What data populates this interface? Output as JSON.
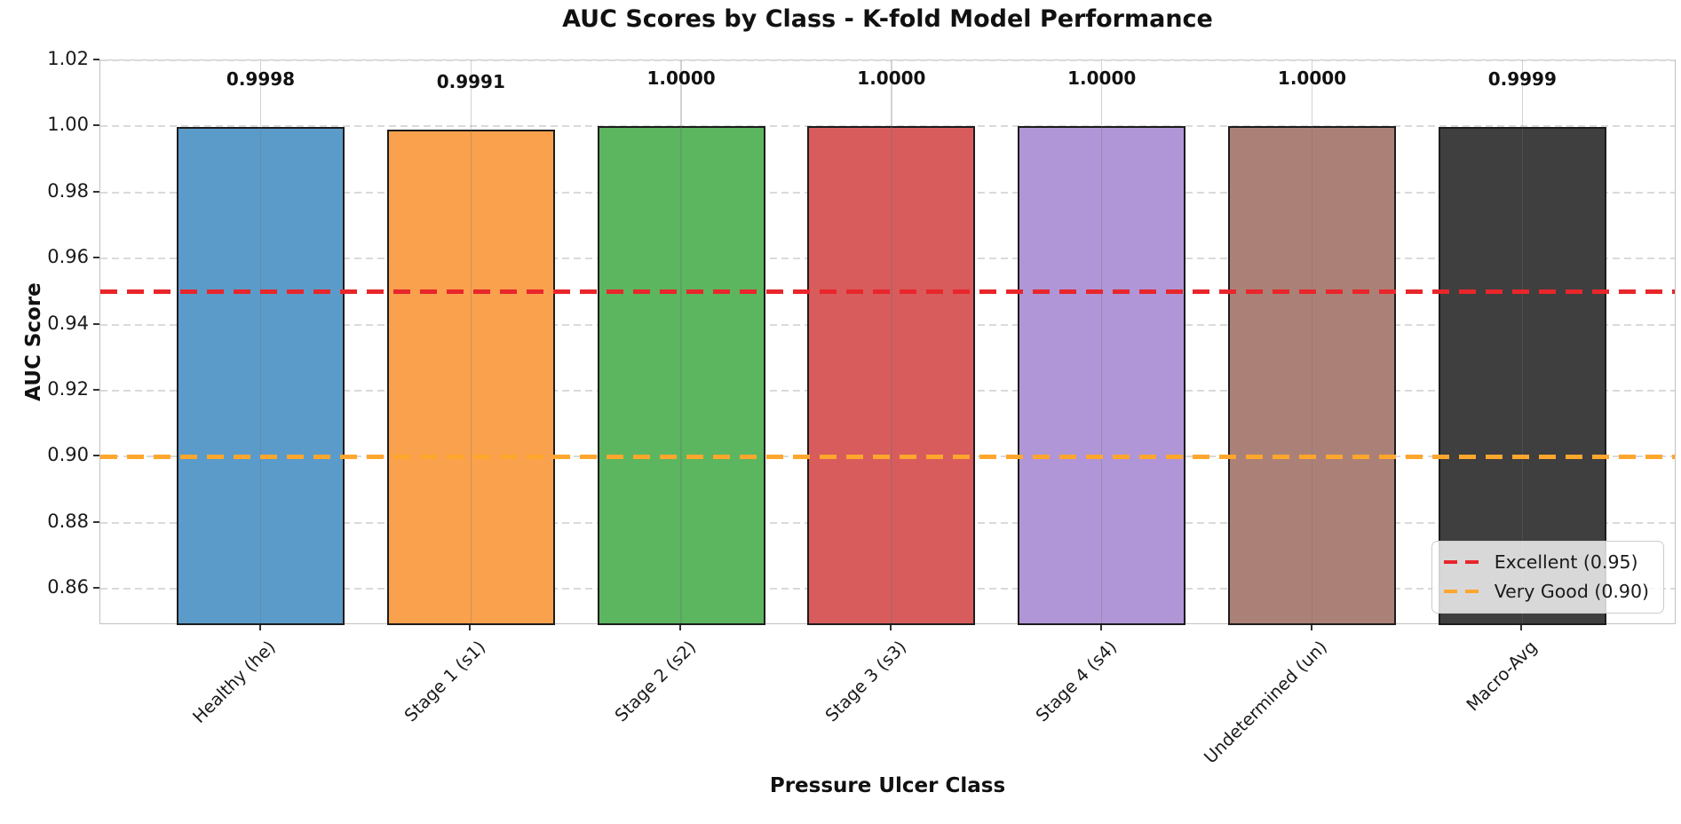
{
  "chart_data": {
    "type": "bar",
    "title": "AUC Scores by Class - K-fold Model Performance",
    "xlabel": "Pressure Ulcer Class",
    "ylabel": "AUC Score",
    "categories": [
      "Healthy (he)",
      "Stage 1 (s1)",
      "Stage 2 (s2)",
      "Stage 3 (s3)",
      "Stage 4 (s4)",
      "Undetermined (un)",
      "Macro-Avg"
    ],
    "values": [
      0.9998,
      0.9991,
      1.0,
      1.0,
      1.0,
      1.0,
      0.9999
    ],
    "value_labels": [
      "0.9998",
      "0.9991",
      "1.0000",
      "1.0000",
      "1.0000",
      "1.0000",
      "0.9999"
    ],
    "bar_colors": [
      "#5b9bc9",
      "#f9a14d",
      "#5cb55f",
      "#d95c5c",
      "#b096d7",
      "#ab8177",
      "#3f3f3f"
    ],
    "bar_edge_color": "#1c1c1c",
    "ylim": [
      0.849,
      1.02
    ],
    "yticks": [
      0.86,
      0.88,
      0.9,
      0.92,
      0.94,
      0.96,
      0.98,
      1.0,
      1.02
    ],
    "ytick_labels": [
      "0.86",
      "0.88",
      "0.90",
      "0.92",
      "0.94",
      "0.96",
      "0.98",
      "1.00",
      "1.02"
    ],
    "grid": true,
    "legend_position": "lower right",
    "reference_lines": [
      {
        "label": "Excellent (0.95)",
        "value": 0.95,
        "color": "#e8262b"
      },
      {
        "label": "Very Good (0.90)",
        "value": 0.9,
        "color": "#ffa62d"
      }
    ]
  }
}
